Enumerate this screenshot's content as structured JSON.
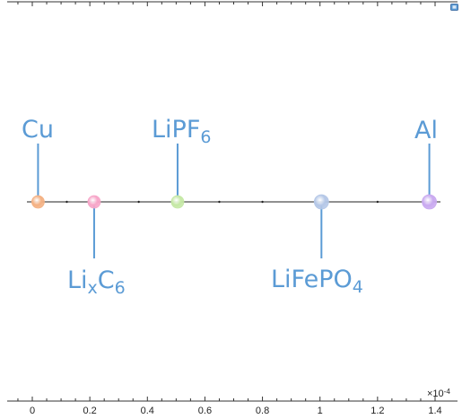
{
  "chart_data": {
    "type": "scatter",
    "x_scale_label": {
      "base": "×10",
      "exponent": "-4"
    },
    "xlim": [
      -0.06,
      1.43
    ],
    "xticks": [
      "0",
      "0.2",
      "0.4",
      "0.6",
      "0.8",
      "1",
      "1.2",
      "1.4"
    ],
    "xtick_values": [
      0,
      0.2,
      0.4,
      0.6,
      0.8,
      1.0,
      1.2,
      1.4
    ],
    "points": [
      {
        "name": "Cu",
        "base": "Cu",
        "sub": "",
        "x": 0.02,
        "color": "#f4b183",
        "label_side": "above"
      },
      {
        "name": "LixC6",
        "base": "Li",
        "sub": "x",
        "base2": "C",
        "sub2": "6",
        "x": 0.215,
        "color": "#f7a5c8",
        "label_side": "below"
      },
      {
        "name": "LiPF6",
        "base": "LiPF",
        "sub": "6",
        "x": 0.505,
        "color": "#c5e8a5",
        "label_side": "above"
      },
      {
        "name": "LiFePO4",
        "base": "LiFePO",
        "sub": "4",
        "x": 1.005,
        "color": "#b4c7e7",
        "label_side": "below"
      },
      {
        "name": "Al",
        "base": "Al",
        "sub": "",
        "x": 1.38,
        "color": "#c9a9f0",
        "label_side": "above"
      }
    ]
  },
  "labels": {
    "cu": "Cu",
    "lixc6_li": "Li",
    "lixc6_x": "x",
    "lixc6_c": "C",
    "lixc6_6": "6",
    "lipf6_base": "LiPF",
    "lipf6_sub": "6",
    "lifepo4_base": "LiFePO",
    "lifepo4_sub": "4",
    "al": "Al"
  },
  "axis": {
    "scale_base": "×10",
    "scale_exp": "-4"
  },
  "icons": {
    "corner": "view-icon"
  },
  "colors": {
    "label": "#5b9bd5",
    "axis": "#333333"
  }
}
